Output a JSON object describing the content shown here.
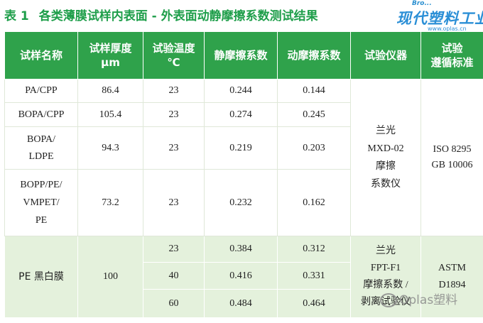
{
  "title": {
    "number": "表 1",
    "text": "各类薄膜试样内表面 - 外表面动静摩擦系数测试结果"
  },
  "logo": {
    "brand_small": "Bro...",
    "name_cn": "现代塑料工业",
    "url": "www.oplas.cn"
  },
  "table": {
    "headers": [
      "试样名称",
      "试样厚度\nμm",
      "试验温度\n℃",
      "静摩擦系数",
      "动摩擦系数",
      "试验仪器",
      "试验\n遵循标准"
    ],
    "rows": [
      {
        "sample": "PA/CPP",
        "thickness": "86.4",
        "temp": "23",
        "static": "0.244",
        "dynamic": "0.144"
      },
      {
        "sample": "BOPA/CPP",
        "thickness": "105.4",
        "temp": "23",
        "static": "0.274",
        "dynamic": "0.245"
      },
      {
        "sample": "BOPA/\nLDPE",
        "thickness": "94.3",
        "temp": "23",
        "static": "0.219",
        "dynamic": "0.203"
      },
      {
        "sample": "BOPP/PE/\nVMPET/\nPE",
        "thickness": "73.2",
        "temp": "23",
        "static": "0.232",
        "dynamic": "0.162"
      }
    ],
    "group1_instrument": "兰光\nMXD-02\n摩擦\n系数仪",
    "group1_standard": "ISO 8295\nGB 10006",
    "group2": {
      "sample": "PE 黑白膜",
      "thickness": "100",
      "rows": [
        {
          "temp": "23",
          "static": "0.384",
          "dynamic": "0.312"
        },
        {
          "temp": "40",
          "static": "0.416",
          "dynamic": "0.331"
        },
        {
          "temp": "60",
          "static": "0.484",
          "dynamic": "0.464"
        }
      ],
      "instrument": "兰光\nFPT-F1\n摩擦系数 /\n剥离试验仪",
      "standard": "ASTM\nD1894"
    }
  },
  "watermark": "Oplas塑料"
}
